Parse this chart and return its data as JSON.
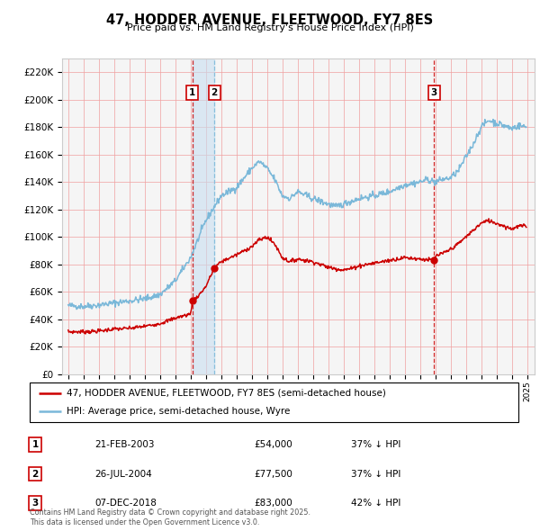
{
  "title": "47, HODDER AVENUE, FLEETWOOD, FY7 8ES",
  "subtitle": "Price paid vs. HM Land Registry's House Price Index (HPI)",
  "legend_line1": "47, HODDER AVENUE, FLEETWOOD, FY7 8ES (semi-detached house)",
  "legend_line2": "HPI: Average price, semi-detached house, Wyre",
  "transactions": [
    {
      "num": 1,
      "date_num": 2003.13,
      "price": 54000,
      "label": "21-FEB-2003",
      "amount": "£54,000",
      "pct": "37% ↓ HPI"
    },
    {
      "num": 2,
      "date_num": 2004.56,
      "price": 77500,
      "label": "26-JUL-2004",
      "amount": "£77,500",
      "pct": "37% ↓ HPI"
    },
    {
      "num": 3,
      "date_num": 2018.92,
      "price": 83000,
      "label": "07-DEC-2018",
      "amount": "£83,000",
      "pct": "42% ↓ HPI"
    }
  ],
  "footnote1": "Contains HM Land Registry data © Crown copyright and database right 2025.",
  "footnote2": "This data is licensed under the Open Government Licence v3.0.",
  "hpi_color": "#7ab8d9",
  "price_color": "#cc0000",
  "vline1_color": "#cc0000",
  "vline2_color": "#7ab8d9",
  "vline3_color": "#cc0000",
  "span_color": "#c8dff0",
  "ylim": [
    0,
    230000
  ],
  "yticks": [
    0,
    20000,
    40000,
    60000,
    80000,
    100000,
    120000,
    140000,
    160000,
    180000,
    200000,
    220000
  ],
  "xlim_left": 1994.6,
  "xlim_right": 2025.5,
  "bg_color": "#f0f0f0",
  "plot_bg": "#f5f5f5"
}
